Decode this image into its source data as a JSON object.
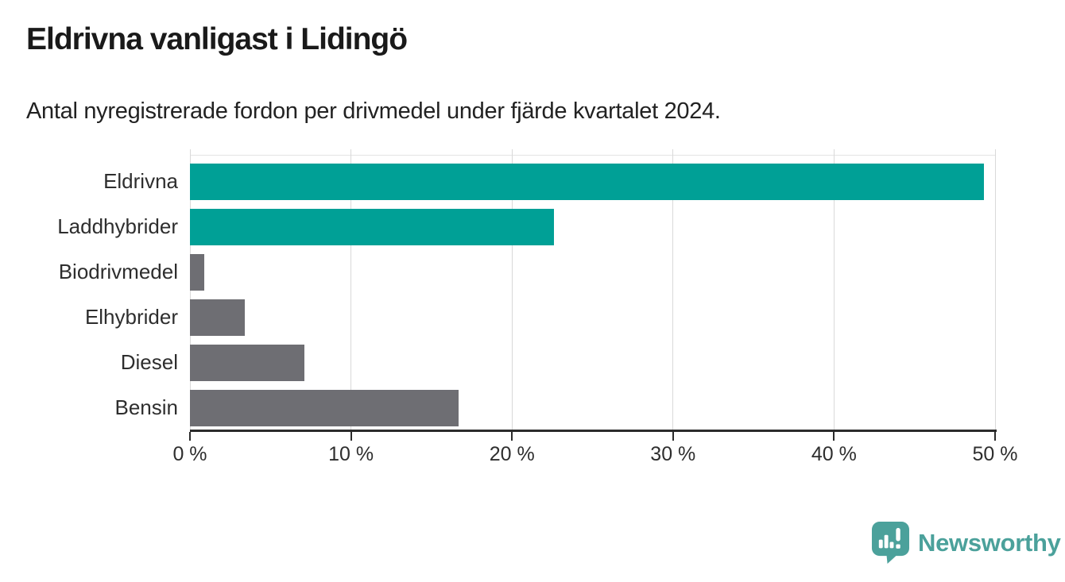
{
  "title": "Eldrivna vanligast i Lidingö",
  "subtitle": "Antal nyregistrerade fordon per drivmedel under fjärde kvartalet 2024.",
  "chart_data": {
    "type": "bar",
    "orientation": "horizontal",
    "title": "Eldrivna vanligast i Lidingö",
    "subtitle": "Antal nyregistrerade fordon per drivmedel under fjärde kvartalet 2024.",
    "categories": [
      "Eldrivna",
      "Laddhybrider",
      "Biodrivmedel",
      "Elhybrider",
      "Diesel",
      "Bensin"
    ],
    "values": [
      49.3,
      22.6,
      0.9,
      3.4,
      7.1,
      16.7
    ],
    "unit": "%",
    "xlim": [
      0,
      50
    ],
    "x_ticks": [
      0,
      10,
      20,
      30,
      40,
      50
    ],
    "x_tick_labels": [
      "0 %",
      "10 %",
      "20 %",
      "30 %",
      "40 %",
      "50 %"
    ],
    "bar_colors": [
      "#00a096",
      "#00a096",
      "#6e6e73",
      "#6e6e73",
      "#6e6e73",
      "#6e6e73"
    ],
    "grid": true,
    "legend": false
  },
  "colors": {
    "teal": "#00a096",
    "gray": "#6e6e73",
    "gridline": "#d9d9d9",
    "axis": "#2b2b2b",
    "title_text": "#1a1a1a",
    "label_text": "#2e2e2e",
    "logo": "#4ba19b"
  },
  "branding": {
    "logo_text": "Newsworthy",
    "logo_icon": "bar-chart-speech-bubble-icon"
  }
}
